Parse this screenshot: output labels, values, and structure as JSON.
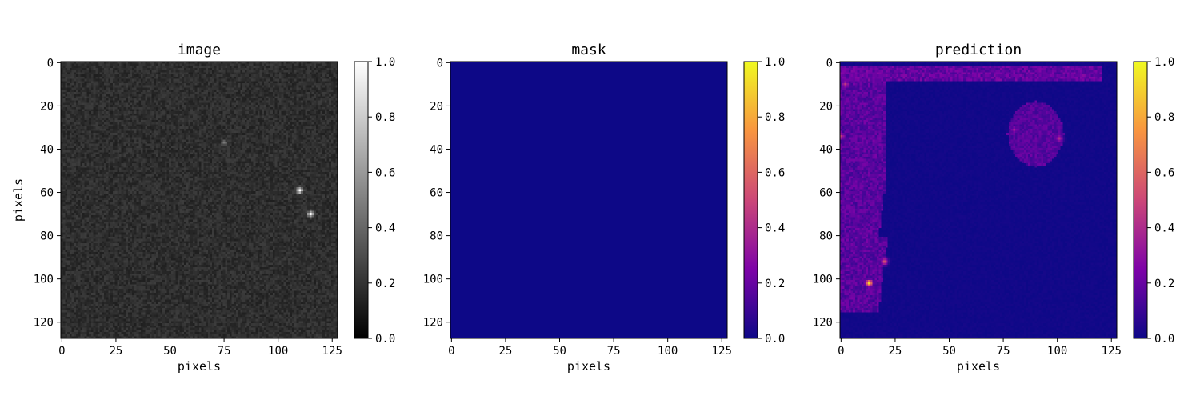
{
  "chart_data": [
    {
      "type": "heatmap",
      "title": "image",
      "xlabel": "pixels",
      "ylabel": "pixels",
      "xlim": [
        0,
        128
      ],
      "ylim": [
        128,
        0
      ],
      "x_ticks": [
        "0",
        "25",
        "50",
        "75",
        "100",
        "125"
      ],
      "y_ticks": [
        "0",
        "20",
        "40",
        "60",
        "80",
        "100",
        "120"
      ],
      "colormap": "gray",
      "colorbar_range": [
        0.0,
        1.0
      ],
      "colorbar_ticks": [
        "0.0",
        "0.2",
        "0.4",
        "0.6",
        "0.8",
        "1.0"
      ],
      "background_level": 0.18,
      "noise_level": 0.06,
      "features": [
        {
          "x": 110,
          "y": 59,
          "intensity": 0.9
        },
        {
          "x": 115,
          "y": 70,
          "intensity": 0.85
        },
        {
          "x": 75,
          "y": 37,
          "intensity": 0.3
        }
      ]
    },
    {
      "type": "heatmap",
      "title": "mask",
      "xlabel": "pixels",
      "ylabel": "",
      "xlim": [
        0,
        128
      ],
      "ylim": [
        128,
        0
      ],
      "x_ticks": [
        "0",
        "25",
        "50",
        "75",
        "100",
        "125"
      ],
      "y_ticks": [
        "0",
        "20",
        "40",
        "60",
        "80",
        "100",
        "120"
      ],
      "colormap": "plasma",
      "colorbar_range": [
        0.0,
        1.0
      ],
      "colorbar_ticks": [
        "0.0",
        "0.2",
        "0.4",
        "0.6",
        "0.8",
        "1.0"
      ],
      "uniform_value": 0.0
    },
    {
      "type": "heatmap",
      "title": "prediction",
      "xlabel": "pixels",
      "ylabel": "",
      "xlim": [
        0,
        128
      ],
      "ylim": [
        128,
        0
      ],
      "x_ticks": [
        "0",
        "25",
        "50",
        "75",
        "100",
        "125"
      ],
      "y_ticks": [
        "0",
        "20",
        "40",
        "60",
        "80",
        "100",
        "120"
      ],
      "colormap": "plasma",
      "colorbar_range": [
        0.0,
        1.0
      ],
      "colorbar_ticks": [
        "0.0",
        "0.2",
        "0.4",
        "0.6",
        "0.8",
        "1.0"
      ],
      "regions": [
        {
          "shape": "band-top",
          "x0": 0,
          "x1": 120,
          "y0": 2,
          "y1": 8,
          "value": 0.22
        },
        {
          "shape": "band-left",
          "x0": 0,
          "x1": 20,
          "y0": 5,
          "y1": 115,
          "value": 0.2
        },
        {
          "shape": "blob",
          "cx": 90,
          "cy": 33,
          "rx": 13,
          "ry": 15,
          "value": 0.18
        },
        {
          "shape": "spot",
          "x": 13,
          "y": 102,
          "value": 0.9
        },
        {
          "shape": "spot",
          "x": 20,
          "y": 92,
          "value": 0.5
        },
        {
          "shape": "spot",
          "x": 2,
          "y": 10,
          "value": 0.45
        },
        {
          "shape": "spot",
          "x": 0,
          "y": 34,
          "value": 0.45
        },
        {
          "shape": "spot",
          "x": 101,
          "y": 35,
          "value": 0.4
        },
        {
          "shape": "spot",
          "x": 80,
          "y": 31,
          "value": 0.35
        }
      ]
    }
  ]
}
